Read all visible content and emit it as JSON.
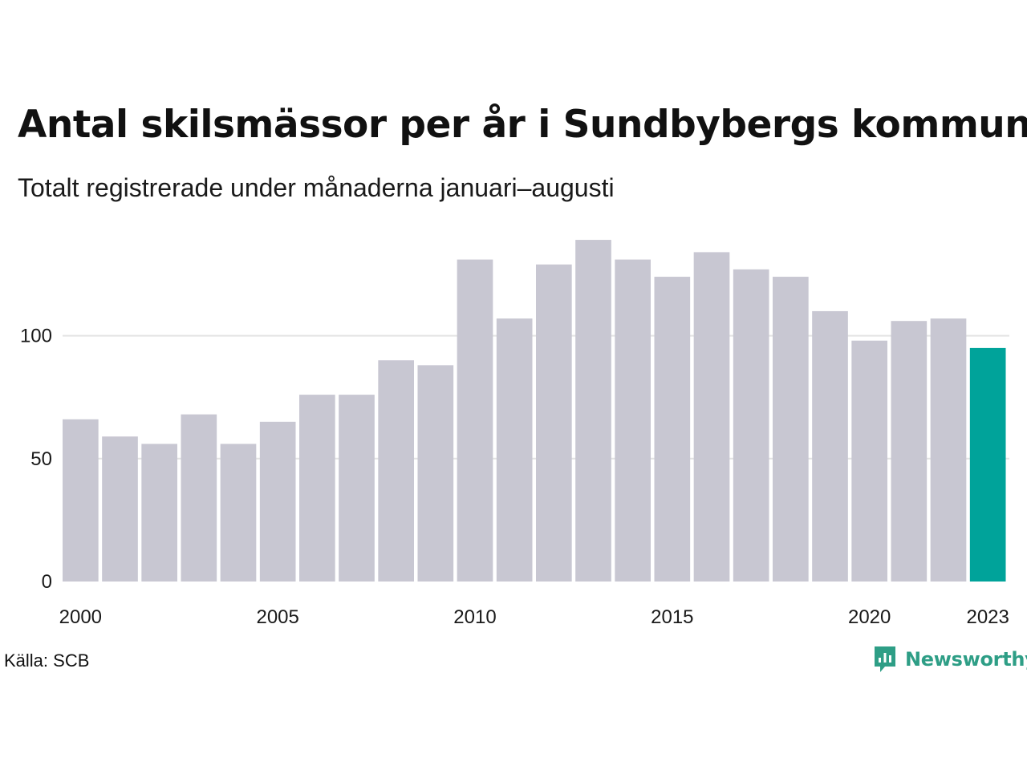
{
  "title": "Antal skilsmässor per år i Sundbybergs kommun",
  "subtitle": "Totalt registrerade under månaderna januari–augusti",
  "source": "Källa: SCB",
  "brand": {
    "name": "Newsworthy",
    "color": "#2e9e86",
    "icon": "newsworthy-logo-icon"
  },
  "colors": {
    "bar": "#c8c7d2",
    "highlight": "#00a39a",
    "grid": "#e3e3e3"
  },
  "chart_data": {
    "type": "bar",
    "title": "Antal skilsmässor per år i Sundbybergs kommun",
    "subtitle": "Totalt registrerade under månaderna januari–augusti",
    "categories": [
      2000,
      2001,
      2002,
      2003,
      2004,
      2005,
      2006,
      2007,
      2008,
      2009,
      2010,
      2011,
      2012,
      2013,
      2014,
      2015,
      2016,
      2017,
      2018,
      2019,
      2020,
      2021,
      2022,
      2023
    ],
    "values": [
      66,
      59,
      56,
      68,
      56,
      65,
      76,
      76,
      90,
      88,
      131,
      107,
      129,
      139,
      131,
      124,
      134,
      127,
      124,
      110,
      98,
      106,
      107,
      95
    ],
    "highlight_category": 2023,
    "x_tick_labels": [
      "2000",
      "2005",
      "2010",
      "2015",
      "2020",
      "2023"
    ],
    "y_ticks": [
      0,
      50,
      100
    ],
    "ylim": [
      0,
      140
    ],
    "xlabel": "",
    "ylabel": "",
    "grid": "horizontal",
    "legend": "none"
  }
}
